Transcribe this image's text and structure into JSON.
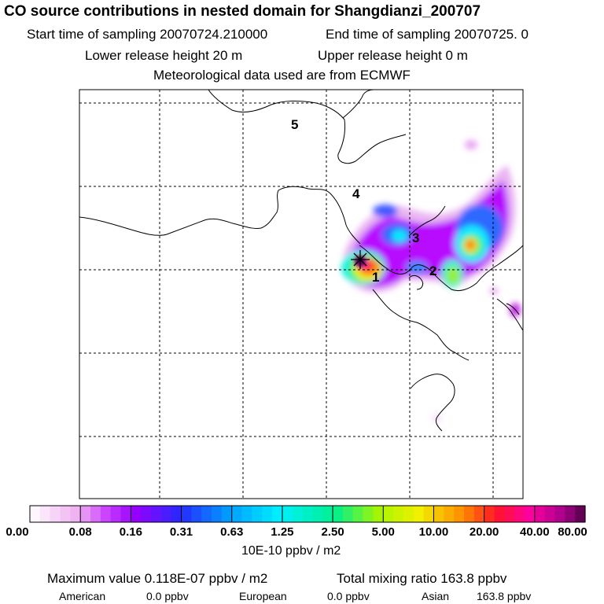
{
  "header": {
    "title": "CO  source contributions in nested domain for Shangdianzi_200707",
    "start_label": "Start time of sampling 20070724.210000",
    "end_label": "End time of sampling 20070725.    0",
    "lower_label": "Lower release height   20 m",
    "upper_label": "Upper release height    0 m",
    "met_label": "Meteorological data used are from ECMWF"
  },
  "map": {
    "region_labels": [
      "1",
      "2",
      "3",
      "4",
      "5"
    ],
    "site_marker": "plus-cross"
  },
  "colorbar": {
    "ticks": [
      "0.00",
      "0.08",
      "0.16",
      "0.31",
      "0.63",
      "1.25",
      "2.50",
      "5.00",
      "10.00",
      "20.00",
      "40.00",
      "80.00"
    ],
    "unit": "10E-10 ppbv / m2"
  },
  "stats": {
    "max_label": "Maximum value  0.118E-07 ppbv / m2",
    "total_label": "Total mixing ratio     163.8 ppbv",
    "american_label": "American",
    "american_value": "0.0 ppbv",
    "european_label": "European",
    "european_value": "0.0 ppbv",
    "asian_label": "Asian",
    "asian_value": "163.8 ppbv"
  },
  "colors": {
    "low": "#f2c8f5",
    "purple": "#b400ff",
    "blue": "#2060ff",
    "cyan": "#00e8ff",
    "green": "#20f080",
    "yellow": "#f0f000",
    "orange": "#ff9000",
    "red": "#ff2020",
    "magenta": "#ff00a0",
    "dark": "#500050"
  }
}
